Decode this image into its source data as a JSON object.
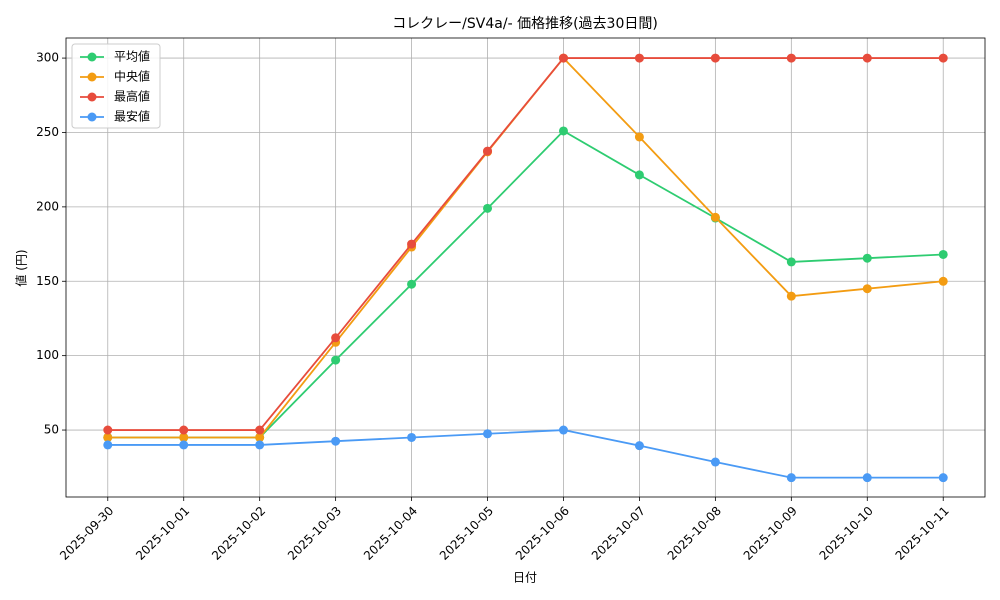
{
  "chart_data": {
    "type": "line",
    "title": "コレクレー/SV4a/- 価格推移(過去30日間)",
    "x_label": "日付",
    "y_label": "値 (円)",
    "categories": [
      "2025-09-30",
      "2025-10-01",
      "2025-10-02",
      "2025-10-03",
      "2025-10-04",
      "2025-10-05",
      "2025-10-06",
      "2025-10-07",
      "2025-10-08",
      "2025-10-09",
      "2025-10-10",
      "2025-10-11"
    ],
    "series": [
      {
        "name": "平均値",
        "color": "#2ecc71",
        "values": [
          45,
          45,
          45,
          97,
          148,
          199,
          251,
          221.5,
          192.5,
          163,
          165.5,
          168
        ]
      },
      {
        "name": "中央値",
        "color": "#f39c12",
        "values": [
          45,
          45,
          45,
          109,
          173,
          237,
          300,
          247,
          193,
          140,
          145,
          150
        ]
      },
      {
        "name": "最高値",
        "color": "#e74c3c",
        "values": [
          50,
          50,
          50,
          112,
          175,
          237.5,
          300,
          300,
          300,
          300,
          300,
          300
        ]
      },
      {
        "name": "最安値",
        "color": "#4a9af5",
        "values": [
          40,
          40,
          40,
          42.5,
          45,
          47.5,
          50,
          39.5,
          28.5,
          18,
          18,
          18
        ]
      }
    ],
    "ylim": [
      5,
      313.5
    ],
    "yticks": [
      50,
      100,
      150,
      200,
      250,
      300
    ],
    "grid": true,
    "legend": "upper-left"
  }
}
